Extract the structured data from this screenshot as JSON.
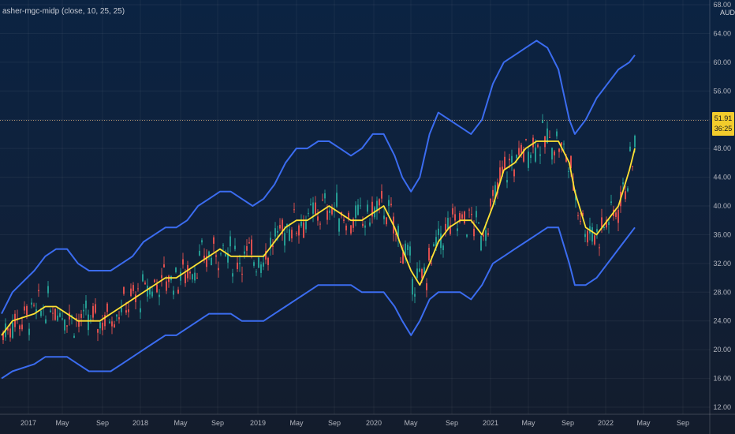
{
  "indicator_label": "asher-mgc-midp (close, 10, 25, 25)",
  "currency": "AUD",
  "last_price": "51.91",
  "countdown": "36:25",
  "colors": {
    "band": "#3b6cf0",
    "mid": "#ffe233",
    "up": "#26a69a",
    "down": "#ef5350",
    "price_line": "#c8a27a"
  },
  "chart_data": {
    "type": "line",
    "title": "",
    "xlabel": "",
    "ylabel": "",
    "ylim": [
      12,
      68
    ],
    "y_ticks": [
      "68.00",
      "64.00",
      "60.00",
      "56.00",
      "52.00",
      "48.00",
      "44.00",
      "40.00",
      "36.00",
      "32.00",
      "28.00",
      "24.00",
      "20.00",
      "16.00",
      "12.00"
    ],
    "x_ticks": [
      "2017",
      "May",
      "Sep",
      "2018",
      "May",
      "Sep",
      "2019",
      "May",
      "Sep",
      "2020",
      "May",
      "Sep",
      "2021",
      "May",
      "Sep",
      "2022",
      "May",
      "Sep"
    ],
    "grid": true,
    "current_price": 51.91,
    "x": [
      2016.5,
      2016.6,
      2016.8,
      2016.9,
      2017.0,
      2017.1,
      2017.2,
      2017.3,
      2017.4,
      2017.5,
      2017.6,
      2017.7,
      2017.8,
      2017.9,
      2018.0,
      2018.1,
      2018.2,
      2018.3,
      2018.4,
      2018.5,
      2018.6,
      2018.7,
      2018.8,
      2018.9,
      2019.0,
      2019.1,
      2019.2,
      2019.3,
      2019.4,
      2019.5,
      2019.6,
      2019.7,
      2019.8,
      2019.9,
      2020.0,
      2020.1,
      2020.17,
      2020.25,
      2020.33,
      2020.42,
      2020.5,
      2020.6,
      2020.7,
      2020.8,
      2020.9,
      2021.0,
      2021.1,
      2021.2,
      2021.3,
      2021.4,
      2021.5,
      2021.6,
      2021.7,
      2021.75,
      2021.85,
      2021.95,
      2022.05,
      2022.15,
      2022.25,
      2022.3
    ],
    "series": [
      {
        "name": "upper",
        "values": [
          25,
          28,
          31,
          33,
          34,
          34,
          32,
          31,
          31,
          31,
          32,
          33,
          35,
          36,
          37,
          37,
          38,
          40,
          41,
          42,
          42,
          41,
          40,
          41,
          43,
          46,
          48,
          48,
          49,
          49,
          48,
          47,
          48,
          50,
          50,
          47,
          44,
          42,
          44,
          50,
          53,
          52,
          51,
          50,
          52,
          57,
          60,
          61,
          62,
          63,
          62,
          59,
          52,
          50,
          52,
          55,
          57,
          59,
          60,
          61
        ]
      },
      {
        "name": "middle",
        "values": [
          22,
          24,
          25,
          26,
          26,
          25,
          24,
          24,
          24,
          25,
          26,
          27,
          28,
          29,
          30,
          30,
          31,
          32,
          33,
          34,
          33,
          33,
          33,
          33,
          35,
          37,
          38,
          38,
          39,
          40,
          39,
          38,
          38,
          39,
          40,
          37,
          34,
          31,
          29,
          32,
          35,
          37,
          38,
          38,
          36,
          40,
          45,
          46,
          48,
          49,
          49,
          49,
          46,
          42,
          37,
          36,
          38,
          40,
          45,
          48
        ]
      },
      {
        "name": "lower",
        "values": [
          16,
          17,
          18,
          19,
          19,
          19,
          18,
          17,
          17,
          17,
          18,
          19,
          20,
          21,
          22,
          22,
          23,
          24,
          25,
          25,
          25,
          24,
          24,
          24,
          25,
          26,
          27,
          28,
          29,
          29,
          29,
          29,
          28,
          28,
          28,
          26,
          24,
          22,
          24,
          27,
          28,
          28,
          28,
          27,
          29,
          32,
          33,
          34,
          35,
          36,
          37,
          37,
          32,
          29,
          29,
          30,
          32,
          34,
          36,
          37
        ]
      }
    ]
  }
}
